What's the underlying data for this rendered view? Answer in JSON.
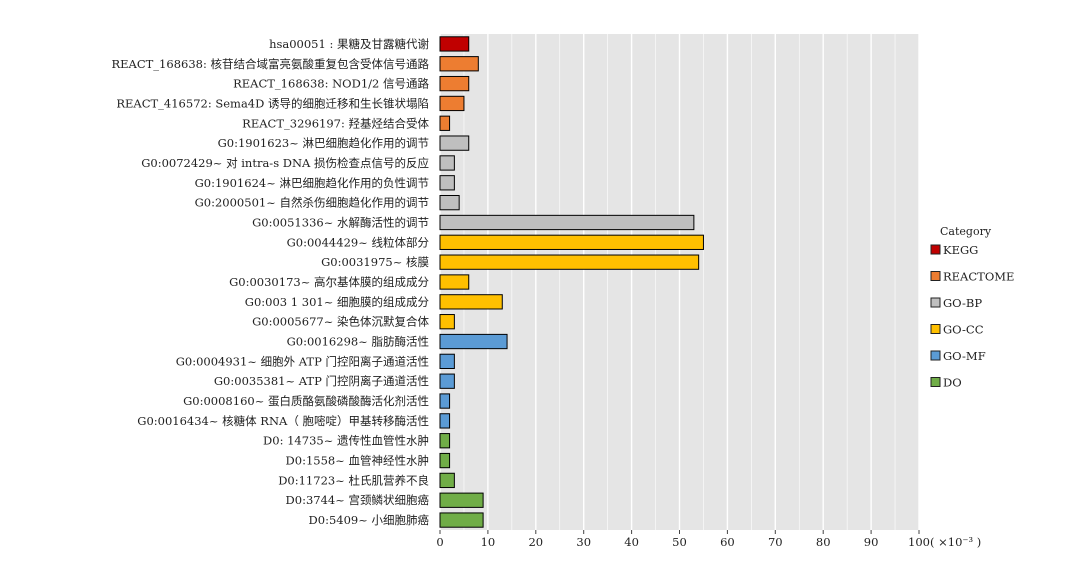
{
  "chart_data": {
    "type": "bar",
    "orientation": "horizontal",
    "categories": [
      "hsa00051 : 果糖及甘露糖代谢",
      "REACT_168638: 核苷结合域富亮氨酸重复包含受体信号通路",
      "REACT_168638: NOD1/2 信号通路",
      "REACT_416572: Sema4D 诱导的细胞迁移和生长锥状塌陷",
      "REACT_3296197: 羟基烃结合受体",
      "G0:1901623~ 淋巴细胞趋化作用的调节",
      "G0:0072429~ 对 intra-s DNA 损伤检查点信号的反应",
      "G0:1901624~ 淋巴细胞趋化作用的负性调节",
      "G0:2000501~ 自然杀伤细胞趋化作用的调节",
      "G0:0051336~ 水解酶活性的调节",
      "G0:0044429~ 线粒体部分",
      "G0:0031975~ 核膜",
      "G0:0030173~ 高尔基体膜的组成成分",
      "G0:003 1 301~ 细胞膜的组成成分",
      "G0:0005677~ 染色体沉默复合体",
      "G0:0016298~ 脂肪酶活性",
      "G0:0004931~ 细胞外 ATP 门控阳离子通道活性",
      "G0:0035381~ ATP 门控阴离子通道活性",
      "G0:0008160~ 蛋白质酪氨酸磷酸酶活化剂活性",
      "G0:0016434~ 核糖体 RNA（ 胞嘧啶）甲基转移酶活性",
      "D0: 14735~ 遗传性血管性水肿",
      "D0:1558~ 血管神经性水肿",
      "D0:11723~ 杜氏肌营养不良",
      "D0:3744~ 宫颈鳞状细胞癌",
      "D0:5409~ 小细胞肺癌"
    ],
    "values": [
      6,
      8,
      6,
      5,
      2,
      6,
      3,
      3,
      4,
      53,
      55,
      54,
      6,
      13,
      3,
      14,
      3,
      3,
      2,
      2,
      2,
      2,
      3,
      9,
      9
    ],
    "groups": [
      "KEGG",
      "REACTOME",
      "REACTOME",
      "REACTOME",
      "REACTOME",
      "GO-BP",
      "GO-BP",
      "GO-BP",
      "GO-BP",
      "GO-BP",
      "GO-CC",
      "GO-CC",
      "GO-CC",
      "GO-CC",
      "GO-CC",
      "GO-MF",
      "GO-MF",
      "GO-MF",
      "GO-MF",
      "GO-MF",
      "DO",
      "DO",
      "DO",
      "DO",
      "DO"
    ],
    "xlim": [
      0,
      100
    ],
    "xticks": [
      "0",
      "10",
      "20",
      "30",
      "40",
      "50",
      "60",
      "70",
      "80",
      "90",
      "100"
    ],
    "xunit_label": "( ×10⁻³ )",
    "grid": true,
    "legend": {
      "title": "Category",
      "placement": "right",
      "items": [
        {
          "name": "KEGG",
          "color": "#c00000"
        },
        {
          "name": "REACTOME",
          "color": "#ed7d31"
        },
        {
          "name": "GO-BP",
          "color": "#bfbfbf"
        },
        {
          "name": "GO-CC",
          "color": "#ffc000"
        },
        {
          "name": "GO-MF",
          "color": "#5b9bd5"
        },
        {
          "name": "DO",
          "color": "#70ad47"
        }
      ]
    },
    "panel_color": "#e5e5e5",
    "gridline_color": "#ffffff",
    "bar_edge_color": "#000000"
  }
}
